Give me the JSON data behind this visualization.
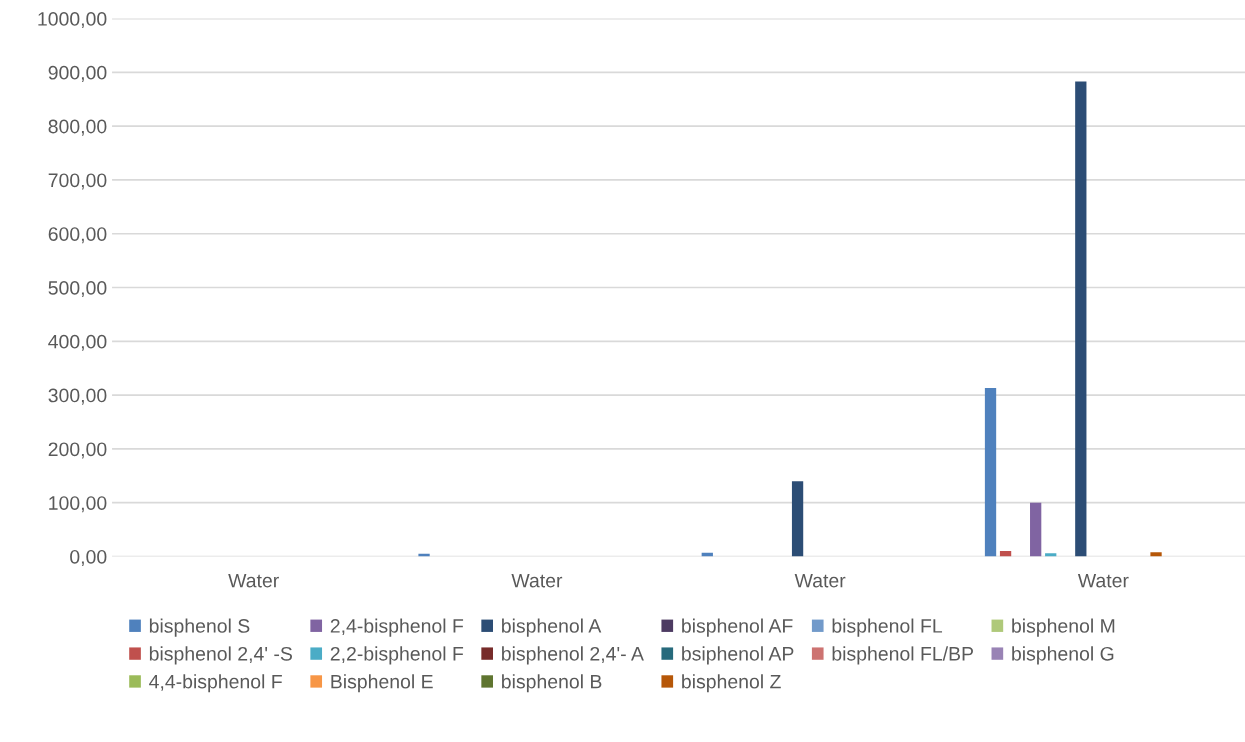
{
  "chart_data": {
    "type": "bar",
    "categories": [
      "Water",
      "Water",
      "Water",
      "Water"
    ],
    "series": [
      {
        "name": "bisphenol S",
        "color": "#4f81bd",
        "values": [
          0,
          5,
          7,
          313
        ]
      },
      {
        "name": "bisphenol 2,4' -S",
        "color": "#c0504d",
        "values": [
          0,
          0,
          0,
          10
        ]
      },
      {
        "name": "4,4-bisphenol F",
        "color": "#9bbb59",
        "values": [
          0,
          0,
          0,
          0
        ]
      },
      {
        "name": "2,4-bisphenol F",
        "color": "#8064a2",
        "values": [
          0,
          0,
          0,
          100
        ]
      },
      {
        "name": "2,2-bisphenol F",
        "color": "#4bacc6",
        "values": [
          0,
          0,
          0,
          6
        ]
      },
      {
        "name": "Bisphenol E",
        "color": "#f79646",
        "values": [
          0,
          0,
          0,
          0
        ]
      },
      {
        "name": "bisphenol A",
        "color": "#2c4d75",
        "values": [
          0,
          0,
          140,
          883
        ]
      },
      {
        "name": "bisphenol 2,4'- A",
        "color": "#772c2a",
        "values": [
          0,
          0,
          0,
          0
        ]
      },
      {
        "name": "bisphenol B",
        "color": "#5f7530",
        "values": [
          0,
          0,
          0,
          0
        ]
      },
      {
        "name": "bisphenol AF",
        "color": "#4d3b62",
        "values": [
          0,
          0,
          0,
          0
        ]
      },
      {
        "name": "bsiphenol AP",
        "color": "#276a7c",
        "values": [
          0,
          0,
          0,
          0
        ]
      },
      {
        "name": "bisphenol Z",
        "color": "#b65708",
        "values": [
          0,
          0,
          0,
          8
        ]
      },
      {
        "name": "bisphenol FL",
        "color": "#729aca",
        "values": [
          0,
          0,
          0,
          0
        ]
      },
      {
        "name": "bisphenol FL/BP",
        "color": "#cd7371",
        "values": [
          0,
          0,
          0,
          0
        ]
      },
      {
        "name": "bisphenol M",
        "color": "#afc97a",
        "values": [
          0,
          0,
          0,
          0
        ]
      },
      {
        "name": "bisphenol G",
        "color": "#9983b5",
        "values": [
          0,
          0,
          0,
          0
        ]
      }
    ],
    "ylim": [
      0,
      1000
    ],
    "yticks": [
      {
        "value": 0,
        "label": "0,00"
      },
      {
        "value": 100,
        "label": "100,00"
      },
      {
        "value": 200,
        "label": "200,00"
      },
      {
        "value": 300,
        "label": "300,00"
      },
      {
        "value": 400,
        "label": "400,00"
      },
      {
        "value": 500,
        "label": "500,00"
      },
      {
        "value": 600,
        "label": "600,00"
      },
      {
        "value": 700,
        "label": "700,00"
      },
      {
        "value": 800,
        "label": "800,00"
      },
      {
        "value": 900,
        "label": "900,00"
      },
      {
        "value": 1000,
        "label": "1000,00"
      }
    ],
    "grid": "y",
    "legend": "bottom"
  }
}
